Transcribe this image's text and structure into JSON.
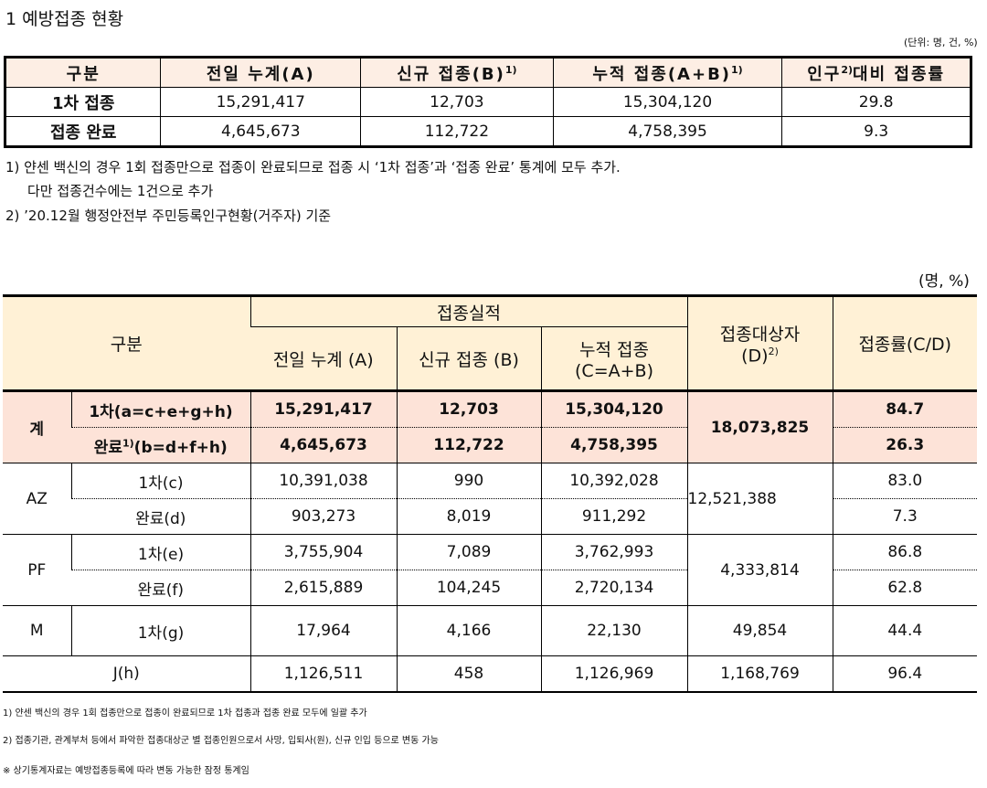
{
  "title": "1 예방접종 현황",
  "unit_top": "(단위: 명, 건, %)",
  "table1": {
    "headers": [
      "구분",
      "전일 누계(A)",
      "신규 접종(B)",
      "1)",
      "누적 접종(A+B)",
      "1)",
      "인구",
      "2)",
      "대비 접종률"
    ],
    "rows": [
      {
        "label": "1차 접종",
        "prev": "15,291,417",
        "new": "12,703",
        "cum": "15,304,120",
        "rate": "29.8"
      },
      {
        "label": "접종 완료",
        "prev": "4,645,673",
        "new": "112,722",
        "cum": "4,758,395",
        "rate": "9.3"
      }
    ]
  },
  "notes": {
    "n1": "1) 얀센 백신의 경우 1회 접종만으로 접종이 완료되므로 접종 시 ‘1차 접종’과 ‘접종 완료’ 통계에 모두 추가.",
    "n1b": "다만 접종건수에는 1건으로 추가",
    "n2": "2) ’20.12월 행정안전부 주민등록인구현황(거주자) 기준"
  },
  "unit2": "(명, %)",
  "table2": {
    "h_category": "구분",
    "h_perf": "접종실적",
    "h_prev": "전일 누계 (A)",
    "h_new": "신규 접종 (B)",
    "h_cum": "누적 접종",
    "h_cum2": "(C=A+B)",
    "h_target": "접종대상자",
    "h_target2": "(D)",
    "h_target_sup": "2)",
    "h_rate": "접종률(C/D)",
    "total": {
      "label": "계",
      "r1": {
        "sub": "1차(a=c+e+g+h)",
        "prev": "15,291,417",
        "new": "12,703",
        "cum": "15,304,120",
        "rate": "84.7"
      },
      "r2": {
        "sub_a": "완료",
        "sub_sup": "1)",
        "sub_b": "(b=d+f+h)",
        "prev": "4,645,673",
        "new": "112,722",
        "cum": "4,758,395",
        "rate": "26.3"
      },
      "target": "18,073,825"
    },
    "az": {
      "label": "AZ",
      "r1": {
        "sub": "1차(c)",
        "prev": "10,391,038",
        "new": "990",
        "cum": "10,392,028",
        "rate": "83.0"
      },
      "r2": {
        "sub": "완료(d)",
        "prev": "903,273",
        "new": "8,019",
        "cum": "911,292",
        "rate": "7.3"
      },
      "target": "12,521,388"
    },
    "pf": {
      "label": "PF",
      "r1": {
        "sub": "1차(e)",
        "prev": "3,755,904",
        "new": "7,089",
        "cum": "3,762,993",
        "rate": "86.8"
      },
      "r2": {
        "sub": "완료(f)",
        "prev": "2,615,889",
        "new": "104,245",
        "cum": "2,720,134",
        "rate": "62.8"
      },
      "target": "4,333,814"
    },
    "m": {
      "label": "M",
      "sub": "1차(g)",
      "prev": "17,964",
      "new": "4,166",
      "cum": "22,130",
      "target": "49,854",
      "rate": "44.4"
    },
    "j": {
      "label": "J(h)",
      "prev": "1,126,511",
      "new": "458",
      "cum": "1,126,969",
      "target": "1,168,769",
      "rate": "96.4"
    }
  },
  "footnotes": {
    "f1": "1) 얀센 백신의 경우 1회 접종만으로 접종이 완료되므로 1차 접종과 접종 완료 모두에 일괄 추가",
    "f2": "2) 접종기관, 관계부처 등에서 파악한 접종대상군 별 접종인원으로서 사망, 입퇴사(원), 신규 인입 등으로 변동 가능",
    "f3": "※ 상기통계자료는 예방접종등록에 따라 변동 가능한 잠정 통계임"
  }
}
